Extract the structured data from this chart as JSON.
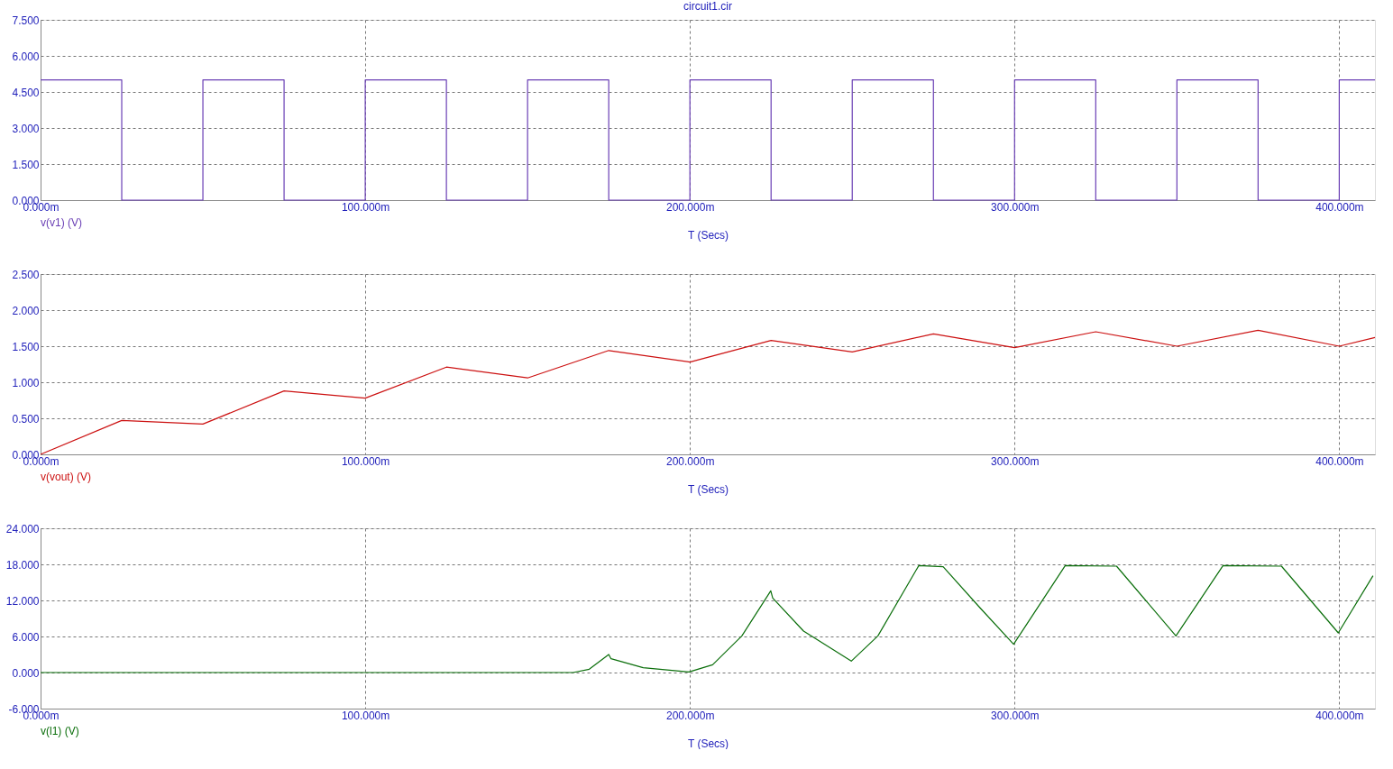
{
  "chart_data": [
    {
      "type": "line",
      "title": "circuit1.cir",
      "xlabel": "T (Secs)",
      "grid": true,
      "xlim": [
        0,
        411
      ],
      "xticks": [
        {
          "value": 0,
          "label": "0.000m"
        },
        {
          "value": 100,
          "label": "100.000m"
        },
        {
          "value": 200,
          "label": "200.000m"
        },
        {
          "value": 300,
          "label": "300.000m"
        },
        {
          "value": 400,
          "label": "400.000m"
        }
      ],
      "ylim": [
        0,
        7.5
      ],
      "yticks": [
        {
          "value": 0,
          "label": "0.000"
        },
        {
          "value": 1.5,
          "label": "1.500"
        },
        {
          "value": 3,
          "label": "3.000"
        },
        {
          "value": 4.5,
          "label": "4.500"
        },
        {
          "value": 6,
          "label": "6.000"
        },
        {
          "value": 7.5,
          "label": "7.500"
        }
      ],
      "x": [
        0,
        25,
        25,
        50,
        50,
        75,
        75,
        100,
        100,
        125,
        125,
        150,
        150,
        175,
        175,
        200,
        200,
        225,
        225,
        250,
        250,
        275,
        275,
        300,
        300,
        325,
        325,
        350,
        350,
        375,
        375,
        400,
        400,
        411
      ],
      "series": [
        {
          "name": "v(v1) (V)",
          "color": "#6a3fb5",
          "values": [
            5,
            5,
            0,
            0,
            5,
            5,
            0,
            0,
            5,
            5,
            0,
            0,
            5,
            5,
            0,
            0,
            5,
            5,
            0,
            0,
            5,
            5,
            0,
            0,
            5,
            5,
            0,
            0,
            5,
            5,
            0,
            0,
            5,
            5
          ]
        }
      ]
    },
    {
      "type": "line",
      "xlabel": "T (Secs)",
      "grid": true,
      "xlim": [
        0,
        411
      ],
      "xticks": [
        {
          "value": 0,
          "label": "0.000m"
        },
        {
          "value": 100,
          "label": "100.000m"
        },
        {
          "value": 200,
          "label": "200.000m"
        },
        {
          "value": 300,
          "label": "300.000m"
        },
        {
          "value": 400,
          "label": "400.000m"
        }
      ],
      "ylim": [
        0,
        2.5
      ],
      "yticks": [
        {
          "value": 0,
          "label": "0.000"
        },
        {
          "value": 0.5,
          "label": "0.500"
        },
        {
          "value": 1,
          "label": "1.000"
        },
        {
          "value": 1.5,
          "label": "1.500"
        },
        {
          "value": 2,
          "label": "2.000"
        },
        {
          "value": 2.5,
          "label": "2.500"
        }
      ],
      "x": [
        0,
        25,
        50,
        75,
        100,
        125,
        150,
        175,
        200,
        225,
        250,
        275,
        300,
        325,
        350,
        375,
        400,
        411
      ],
      "series": [
        {
          "name": "v(vout) (V)",
          "color": "#cc1111",
          "values": [
            0,
            0.47,
            0.42,
            0.88,
            0.78,
            1.21,
            1.06,
            1.44,
            1.28,
            1.58,
            1.42,
            1.67,
            1.48,
            1.7,
            1.5,
            1.72,
            1.5,
            1.62
          ]
        }
      ]
    },
    {
      "type": "line",
      "xlabel": "T (Secs)",
      "grid": true,
      "xlim": [
        0,
        411
      ],
      "xticks": [
        {
          "value": 0,
          "label": "0.000m"
        },
        {
          "value": 100,
          "label": "100.000m"
        },
        {
          "value": 200,
          "label": "200.000m"
        },
        {
          "value": 300,
          "label": "300.000m"
        },
        {
          "value": 400,
          "label": "400.000m"
        }
      ],
      "ylim": [
        -6,
        24
      ],
      "yticks": [
        {
          "value": -6,
          "label": "-6.000"
        },
        {
          "value": 0,
          "label": "0.000"
        },
        {
          "value": 6,
          "label": "6.000"
        },
        {
          "value": 12,
          "label": "12.000"
        },
        {
          "value": 18,
          "label": "18.000"
        },
        {
          "value": 24,
          "label": "24.000"
        }
      ],
      "x": [
        0,
        164,
        169,
        175,
        175.7,
        185.6,
        199.7,
        207,
        216,
        224.9,
        225.5,
        235,
        249.7,
        257.9,
        270.5,
        278,
        289.3,
        299.7,
        315.6,
        331.4,
        349.7,
        364.2,
        382.2,
        399.7,
        410.4
      ],
      "series": [
        {
          "name": "v(l1) (V)",
          "color": "#0a6e0a",
          "values": [
            0,
            0,
            0.55,
            3.0,
            2.3,
            0.8,
            0.1,
            1.3,
            6.1,
            13.6,
            12.4,
            6.9,
            1.9,
            6.1,
            17.8,
            17.6,
            10.8,
            4.7,
            17.8,
            17.7,
            6.1,
            17.8,
            17.7,
            6.6,
            16.1
          ]
        }
      ]
    }
  ]
}
